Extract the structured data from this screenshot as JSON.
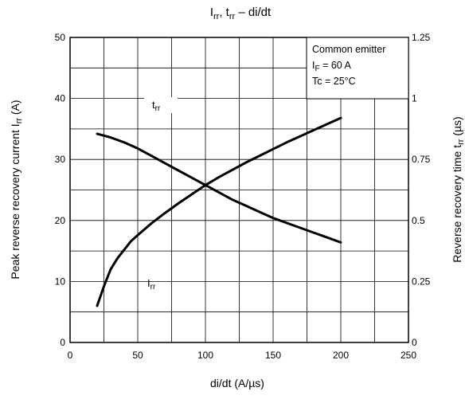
{
  "chart_data": {
    "type": "line",
    "title": "I_rr, t_rr – di/dt",
    "xlabel": "di/dt (A/µs)",
    "ylabel_left": "Peak reverse recovery current I_rr (A)",
    "ylabel_right": "Reverse recovery time t_rr (µs)",
    "xlim": [
      0,
      250
    ],
    "ylim_left": [
      0,
      50
    ],
    "ylim_right": [
      0,
      1.25
    ],
    "x_ticks": [
      "0",
      "50",
      "100",
      "150",
      "200",
      "250"
    ],
    "y_left_ticks": [
      "0",
      "10",
      "20",
      "30",
      "40",
      "50"
    ],
    "y_right_ticks": [
      "0",
      "0.25",
      "0.5",
      "0.75",
      "1",
      "1.25"
    ],
    "grid": true,
    "legend_position": "top-right",
    "legend": [
      "Common emitter",
      "I_F = 60 A",
      "Tc = 25°C"
    ],
    "series": [
      {
        "name": "I_rr",
        "axis": "left",
        "x": [
          20,
          25,
          30,
          35,
          40,
          45,
          50,
          60,
          70,
          80,
          90,
          100,
          110,
          120,
          130,
          140,
          150,
          160,
          170,
          180,
          190,
          200
        ],
        "values": [
          6.0,
          9.2,
          12.0,
          13.8,
          15.2,
          16.6,
          17.6,
          19.5,
          21.2,
          22.8,
          24.3,
          25.8,
          27.1,
          28.3,
          29.5,
          30.6,
          31.7,
          32.8,
          33.8,
          34.8,
          35.8,
          36.8
        ]
      },
      {
        "name": "t_rr",
        "axis": "right",
        "x": [
          20,
          30,
          40,
          50,
          60,
          70,
          80,
          90,
          100,
          110,
          120,
          130,
          140,
          150,
          160,
          170,
          180,
          190,
          200
        ],
        "values": [
          0.855,
          0.84,
          0.82,
          0.795,
          0.765,
          0.735,
          0.705,
          0.675,
          0.645,
          0.615,
          0.585,
          0.56,
          0.535,
          0.51,
          0.49,
          0.47,
          0.45,
          0.43,
          0.41
        ]
      }
    ],
    "curve_labels": {
      "irr": "I_rr",
      "trr": "t_rr"
    }
  }
}
